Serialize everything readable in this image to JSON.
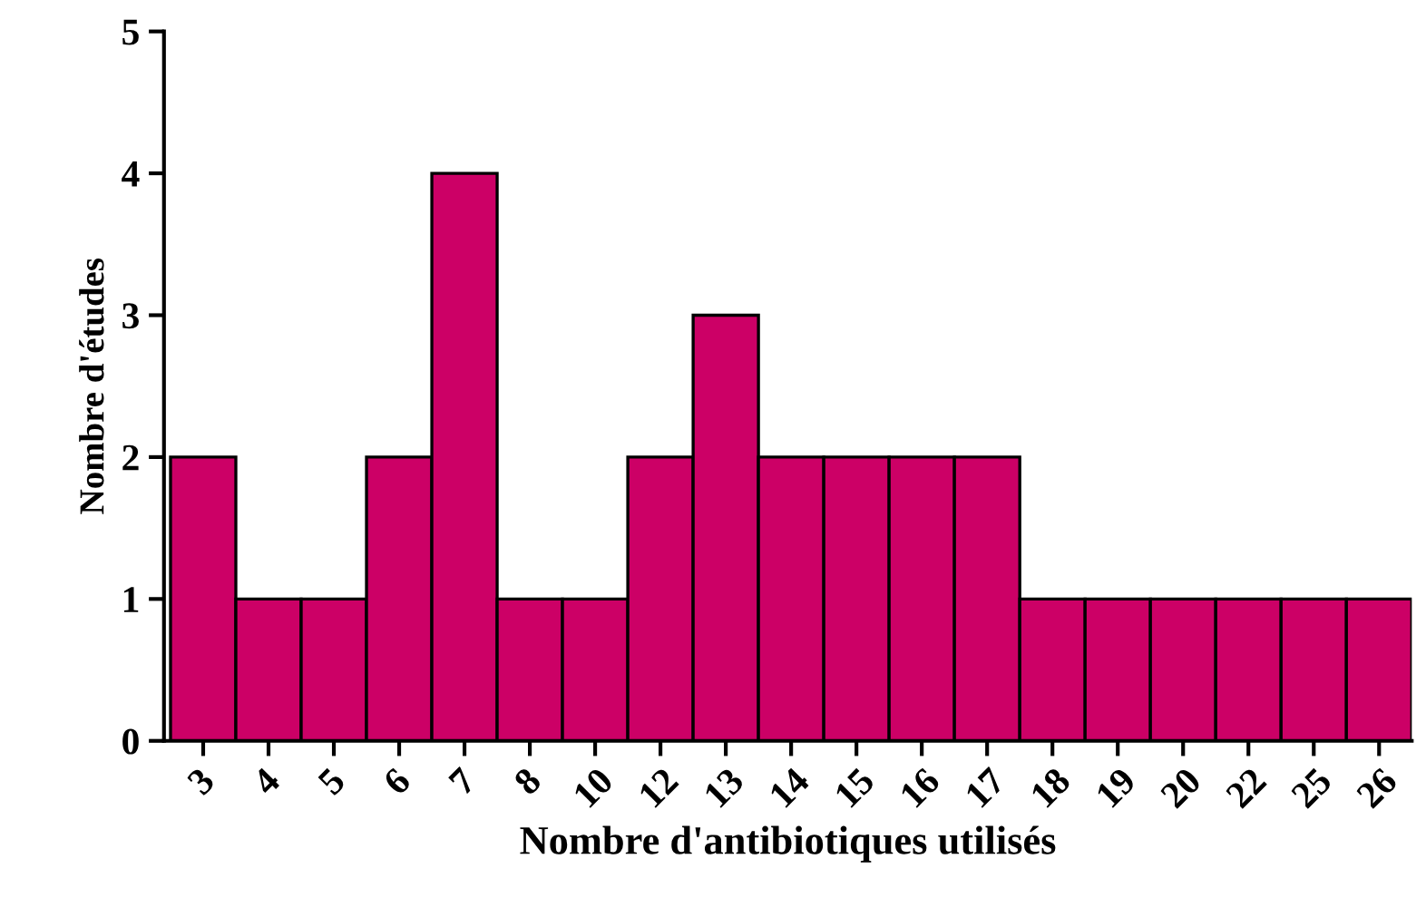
{
  "chart_data": {
    "type": "bar",
    "xlabel": "Nombre d'antibiotiques utilisés",
    "ylabel": "Nombre d'études",
    "categories": [
      "3",
      "4",
      "5",
      "6",
      "7",
      "8",
      "10",
      "12",
      "13",
      "14",
      "15",
      "16",
      "17",
      "18",
      "19",
      "20",
      "22",
      "25",
      "26"
    ],
    "values": [
      2,
      1,
      1,
      2,
      4,
      1,
      1,
      2,
      3,
      2,
      2,
      2,
      2,
      1,
      1,
      1,
      1,
      1,
      1
    ],
    "color": "#cc0066",
    "ylim": [
      0,
      5
    ],
    "yticks": [
      0,
      1,
      2,
      3,
      4,
      5
    ],
    "grid": false,
    "legend": false
  }
}
